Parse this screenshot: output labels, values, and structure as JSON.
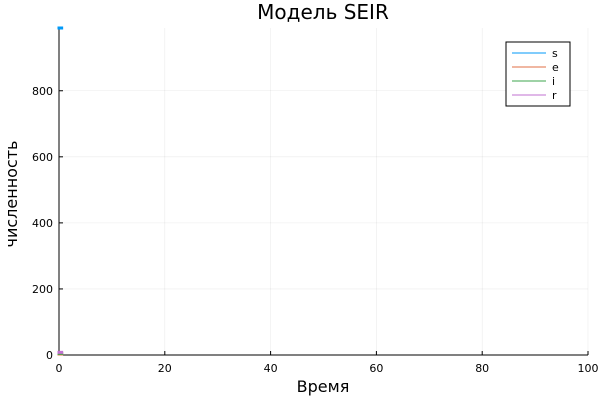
{
  "chart_data": {
    "type": "line",
    "title": "Модель SEIR",
    "xlabel": "Время",
    "ylabel": "численность",
    "xlim": [
      0,
      100
    ],
    "ylim": [
      0,
      990
    ],
    "xticks": [
      0,
      20,
      40,
      60,
      80,
      100
    ],
    "yticks": [
      0,
      200,
      400,
      600,
      800
    ],
    "grid": true,
    "legend_position": "top-right",
    "series": [
      {
        "name": "s",
        "color": "#009af9",
        "x": [
          0,
          0.5
        ],
        "y": [
          990,
          990
        ]
      },
      {
        "name": "e",
        "color": "#e26f46",
        "x": [
          0,
          0.5
        ],
        "y": [
          3,
          3
        ]
      },
      {
        "name": "i",
        "color": "#3ea44e",
        "x": [
          0,
          0.5
        ],
        "y": [
          5,
          5
        ]
      },
      {
        "name": "r",
        "color": "#c271d2",
        "x": [
          0,
          0.5
        ],
        "y": [
          8,
          8
        ]
      }
    ]
  }
}
